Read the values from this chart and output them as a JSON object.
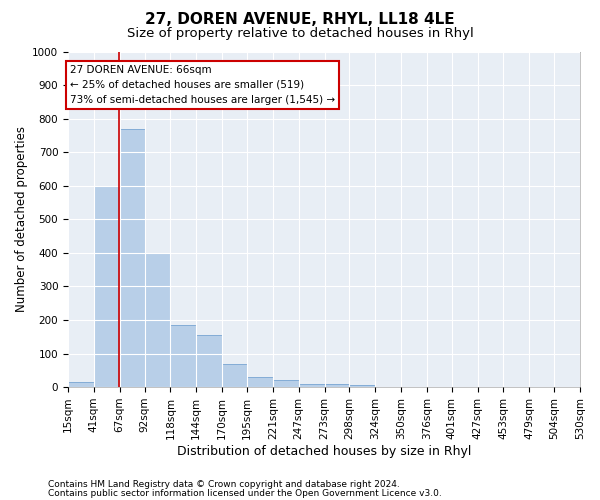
{
  "title": "27, DOREN AVENUE, RHYL, LL18 4LE",
  "subtitle": "Size of property relative to detached houses in Rhyl",
  "xlabel": "Distribution of detached houses by size in Rhyl",
  "ylabel": "Number of detached properties",
  "footnote1": "Contains HM Land Registry data © Crown copyright and database right 2024.",
  "footnote2": "Contains public sector information licensed under the Open Government Licence v3.0.",
  "annotation_title": "27 DOREN AVENUE: 66sqm",
  "annotation_line1": "← 25% of detached houses are smaller (519)",
  "annotation_line2": "73% of semi-detached houses are larger (1,545) →",
  "bar_values": [
    15,
    600,
    770,
    400,
    185,
    155,
    70,
    30,
    20,
    10,
    10,
    5,
    0,
    0,
    0,
    0,
    0,
    0,
    0,
    0
  ],
  "bar_color": "#b8cfe8",
  "bar_edge_color": "#6699cc",
  "bin_edges": [
    15,
    41,
    67,
    92,
    118,
    144,
    170,
    195,
    221,
    247,
    273,
    298,
    324,
    350,
    376,
    401,
    427,
    453,
    479,
    504,
    530
  ],
  "tick_labels": [
    "15sqm",
    "41sqm",
    "67sqm",
    "92sqm",
    "118sqm",
    "144sqm",
    "170sqm",
    "195sqm",
    "221sqm",
    "247sqm",
    "273sqm",
    "298sqm",
    "324sqm",
    "350sqm",
    "376sqm",
    "401sqm",
    "427sqm",
    "453sqm",
    "479sqm",
    "504sqm",
    "530sqm"
  ],
  "ylim": [
    0,
    1000
  ],
  "yticks": [
    0,
    100,
    200,
    300,
    400,
    500,
    600,
    700,
    800,
    900,
    1000
  ],
  "property_size": 66,
  "vline_color": "#cc0000",
  "background_color": "#e8eef5",
  "grid_color": "#ffffff",
  "title_fontsize": 11,
  "subtitle_fontsize": 9.5,
  "ylabel_fontsize": 8.5,
  "xlabel_fontsize": 9,
  "tick_fontsize": 7.5,
  "annotation_fontsize": 7.5,
  "footnote_fontsize": 6.5,
  "annotation_box_color": "#ffffff",
  "annotation_box_edge": "#cc0000"
}
